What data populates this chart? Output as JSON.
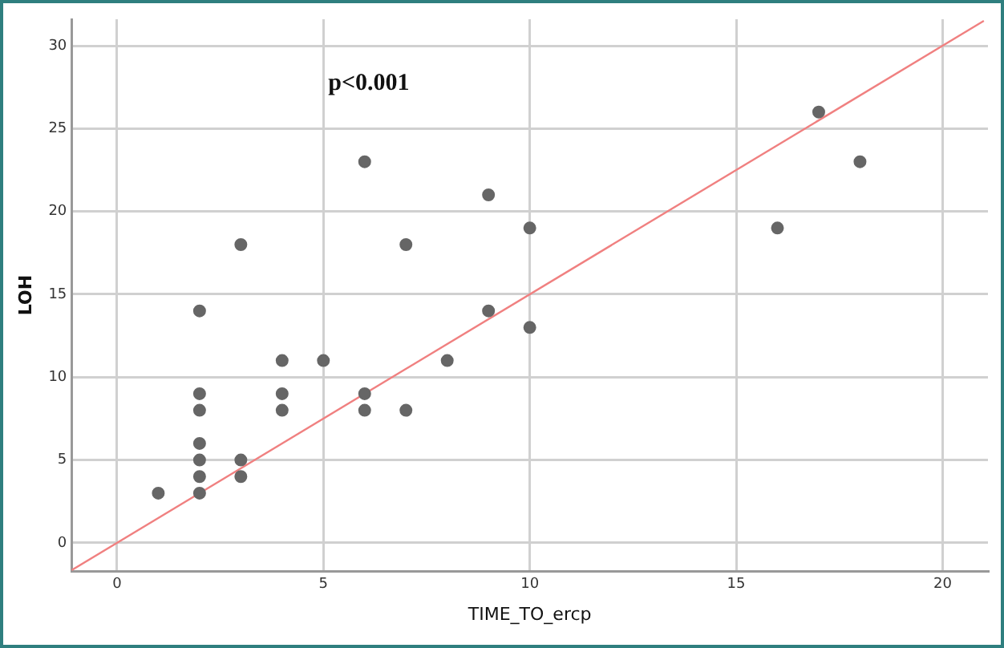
{
  "chart_data": {
    "type": "scatter",
    "xlabel": "TIME_TO_ercp",
    "ylabel": "LOH",
    "annotations": [
      "p<0.001"
    ],
    "xlim": [
      -1.1,
      21.1
    ],
    "ylim": [
      -1.7,
      31.6
    ],
    "xticks": [
      0,
      5,
      10,
      15,
      20
    ],
    "yticks": [
      0,
      5,
      10,
      15,
      20,
      25,
      30
    ],
    "grid": true,
    "legend": false,
    "marker": "circle",
    "series": [
      {
        "color": "#666666",
        "x": [
          1,
          2,
          2,
          2,
          2,
          2,
          2,
          2,
          3,
          3,
          3,
          4,
          4,
          4,
          5,
          6,
          6,
          6,
          7,
          7,
          8,
          9,
          9,
          10,
          10,
          16,
          17,
          18
        ],
        "values": [
          3,
          3,
          4,
          5,
          6,
          8,
          9,
          14,
          4,
          5,
          18,
          8,
          9,
          11,
          11,
          8,
          9,
          23,
          8,
          18,
          11,
          14,
          21,
          13,
          19,
          19,
          26,
          23
        ]
      },
      {
        "type": "line",
        "color": "#f08080",
        "marker": "none",
        "line_style": "solid",
        "x": [
          -1.1,
          21
        ],
        "values": [
          -1.65,
          31.5
        ]
      }
    ]
  }
}
